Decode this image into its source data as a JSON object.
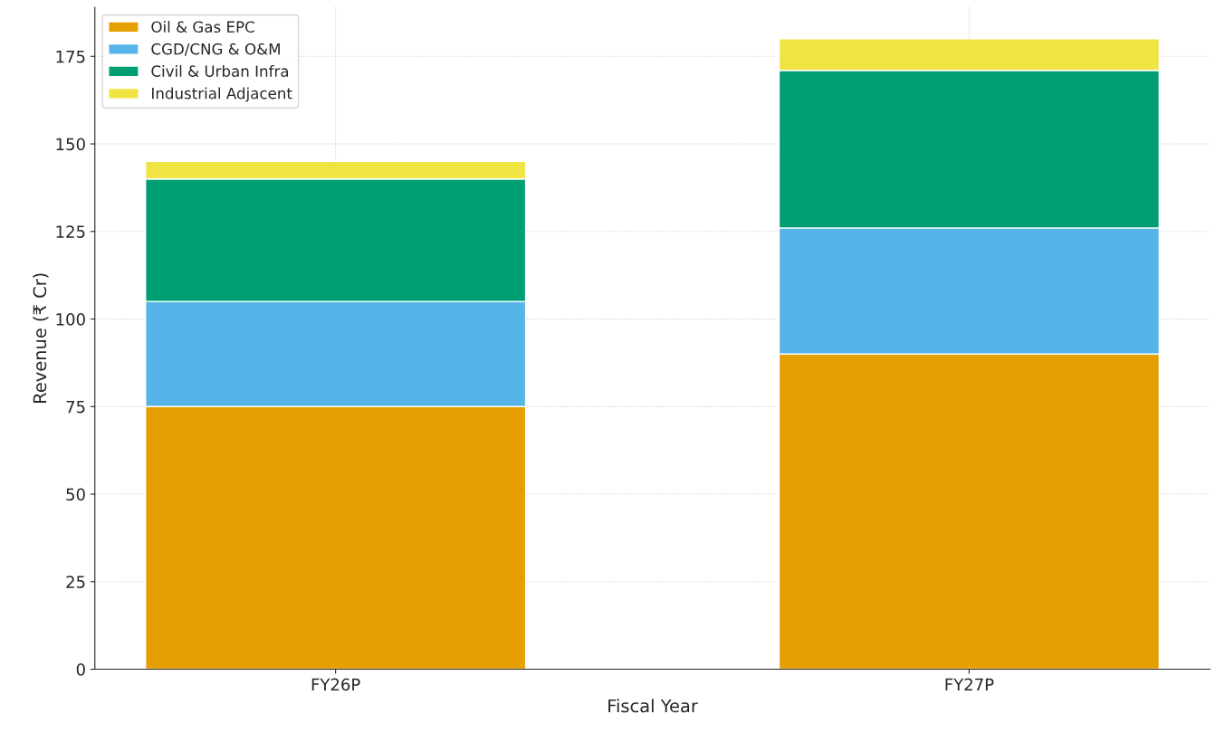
{
  "chart_data": {
    "type": "bar",
    "stacked": true,
    "xlabel": "Fiscal Year",
    "ylabel": "Revenue (₹ Cr)",
    "categories": [
      "FY26P",
      "FY27P"
    ],
    "series": [
      {
        "name": "Oil & Gas EPC",
        "color": "#e69f00",
        "values": [
          75,
          90
        ]
      },
      {
        "name": "CGD/CNG & O&M",
        "color": "#56b4e9",
        "values": [
          30,
          36
        ]
      },
      {
        "name": "Civil & Urban Infra",
        "color": "#009e73",
        "values": [
          35,
          45
        ]
      },
      {
        "name": "Industrial Adjacent",
        "color": "#f0e442",
        "values": [
          5,
          9
        ]
      }
    ],
    "ylim": [
      0,
      189
    ],
    "yticks": [
      0,
      25,
      50,
      75,
      100,
      125,
      150,
      175
    ],
    "grid": true,
    "legend": "top left"
  }
}
